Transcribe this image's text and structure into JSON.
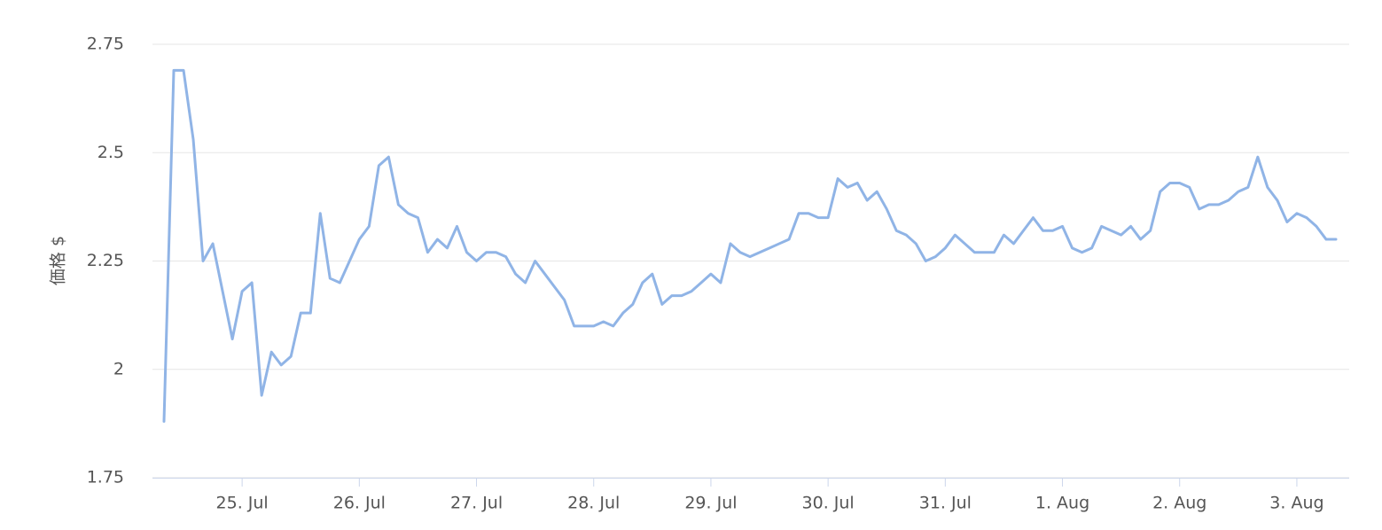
{
  "chart_data": {
    "type": "line",
    "y_label": "価格 $",
    "categories": [
      null,
      null,
      null,
      null,
      null,
      null,
      null,
      null,
      "25. Jul",
      null,
      null,
      null,
      null,
      null,
      null,
      null,
      null,
      null,
      null,
      null,
      "26. Jul",
      null,
      null,
      null,
      null,
      null,
      null,
      null,
      null,
      null,
      null,
      null,
      "27. Jul",
      null,
      null,
      null,
      null,
      null,
      null,
      null,
      null,
      null,
      null,
      null,
      "28. Jul",
      null,
      null,
      null,
      null,
      null,
      null,
      null,
      null,
      null,
      null,
      null,
      "29. Jul",
      null,
      null,
      null,
      null,
      null,
      null,
      null,
      null,
      null,
      null,
      null,
      "30. Jul",
      null,
      null,
      null,
      null,
      null,
      null,
      null,
      null,
      null,
      null,
      null,
      "31. Jul",
      null,
      null,
      null,
      null,
      null,
      null,
      null,
      null,
      null,
      null,
      null,
      "1. Aug",
      null,
      null,
      null,
      null,
      null,
      null,
      null,
      null,
      null,
      null,
      null,
      "2. Aug",
      null,
      null,
      null,
      null,
      null,
      null,
      null,
      null,
      null,
      null,
      null,
      "3. Aug",
      null,
      null,
      null,
      null
    ],
    "series": [
      {
        "color": "#90b4e6",
        "values": [
          1.88,
          2.69,
          2.69,
          2.53,
          2.25,
          2.29,
          2.18,
          2.07,
          2.18,
          2.2,
          1.94,
          2.04,
          2.01,
          2.03,
          2.13,
          2.13,
          2.36,
          2.21,
          2.2,
          2.25,
          2.3,
          2.33,
          2.47,
          2.49,
          2.38,
          2.36,
          2.35,
          2.27,
          2.3,
          2.28,
          2.33,
          2.27,
          2.25,
          2.27,
          2.27,
          2.26,
          2.22,
          2.2,
          2.25,
          2.22,
          2.19,
          2.16,
          2.1,
          2.1,
          2.1,
          2.11,
          2.1,
          2.13,
          2.15,
          2.2,
          2.22,
          2.15,
          2.17,
          2.17,
          2.18,
          2.2,
          2.22,
          2.2,
          2.29,
          2.27,
          2.26,
          2.27,
          2.28,
          2.29,
          2.3,
          2.36,
          2.36,
          2.35,
          2.35,
          2.44,
          2.42,
          2.43,
          2.39,
          2.41,
          2.37,
          2.32,
          2.31,
          2.29,
          2.25,
          2.26,
          2.28,
          2.31,
          2.29,
          2.27,
          2.27,
          2.27,
          2.31,
          2.29,
          2.32,
          2.35,
          2.32,
          2.32,
          2.33,
          2.28,
          2.27,
          2.28,
          2.33,
          2.32,
          2.31,
          2.33,
          2.3,
          2.32,
          2.41,
          2.43,
          2.43,
          2.42,
          2.37,
          2.38,
          2.38,
          2.39,
          2.41,
          2.42,
          2.49,
          2.42,
          2.39,
          2.34,
          2.36,
          2.35,
          2.33,
          2.3,
          2.3
        ]
      }
    ],
    "ylim": [
      1.75,
      2.75
    ],
    "yticks": [
      1.75,
      2,
      2.25,
      2.5,
      2.75
    ],
    "grid": true
  }
}
